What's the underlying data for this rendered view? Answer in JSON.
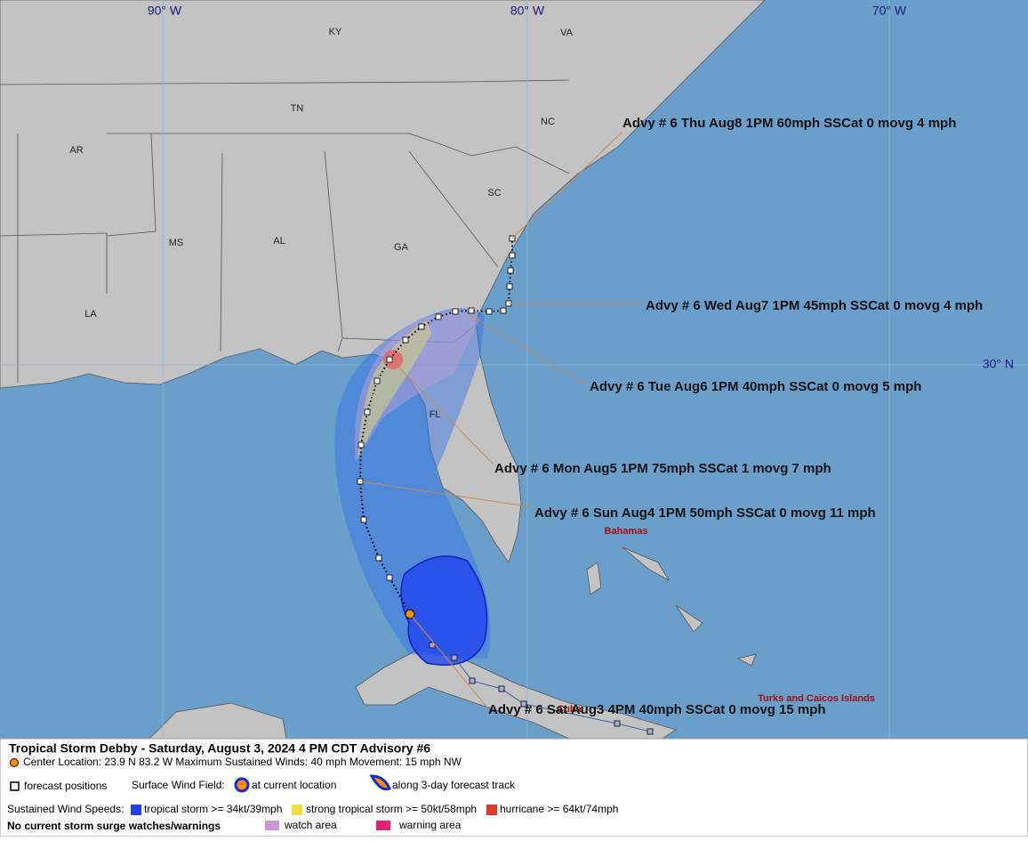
{
  "map": {
    "grid_labels": [
      "90° W",
      "80° W",
      "70° W",
      "30° N"
    ],
    "state_labels": [
      "KY",
      "VA",
      "TN",
      "NC",
      "AR",
      "SC",
      "MS",
      "AL",
      "GA",
      "LA",
      "FL"
    ],
    "place_labels": [
      "Bahamas",
      "Turks and Caicos Islands",
      "Cuba"
    ],
    "advisory_labels": [
      "Advy # 6 Thu Aug8 1PM  60mph SSCat 0 movg 4 mph",
      "Advy # 6 Wed Aug7 1PM  45mph SSCat 0 movg 4 mph",
      "Advy # 6 Tue Aug6 1PM  40mph SSCat 0 movg 5 mph",
      "Advy # 6 Mon Aug5 1PM  75mph SSCat 1 movg 7 mph",
      "Advy # 6 Sun Aug4 1PM  50mph SSCat 0 movg 11 mph",
      "Advy # 6 Sat Aug3 4PM  40mph SSCat 0 movg 15 mph"
    ]
  },
  "legend": {
    "title": "Tropical Storm Debby  -  Saturday, August 3, 2024  4 PM CDT   Advisory #6",
    "details": "Center Location: 23.9 N  83.2 W   Maximum Sustained Winds: 40 mph   Movement: 15 mph NW",
    "forecast_positions": "forecast positions",
    "surface_wind_field": "Surface Wind Field:",
    "at_current_location": "at current location",
    "along_track": "along 3-day forecast track",
    "sustained_wind_speeds": "Sustained Wind Speeds:",
    "tropical_storm": "tropical storm >= 34kt/39mph",
    "strong_tropical_storm": "strong tropical storm >= 50kt/58mph",
    "hurricane": "hurricane >= 64kt/74mph",
    "storm_surge": "No current storm surge watches/warnings",
    "watch_area": "watch area",
    "warning_area": "warning area"
  }
}
